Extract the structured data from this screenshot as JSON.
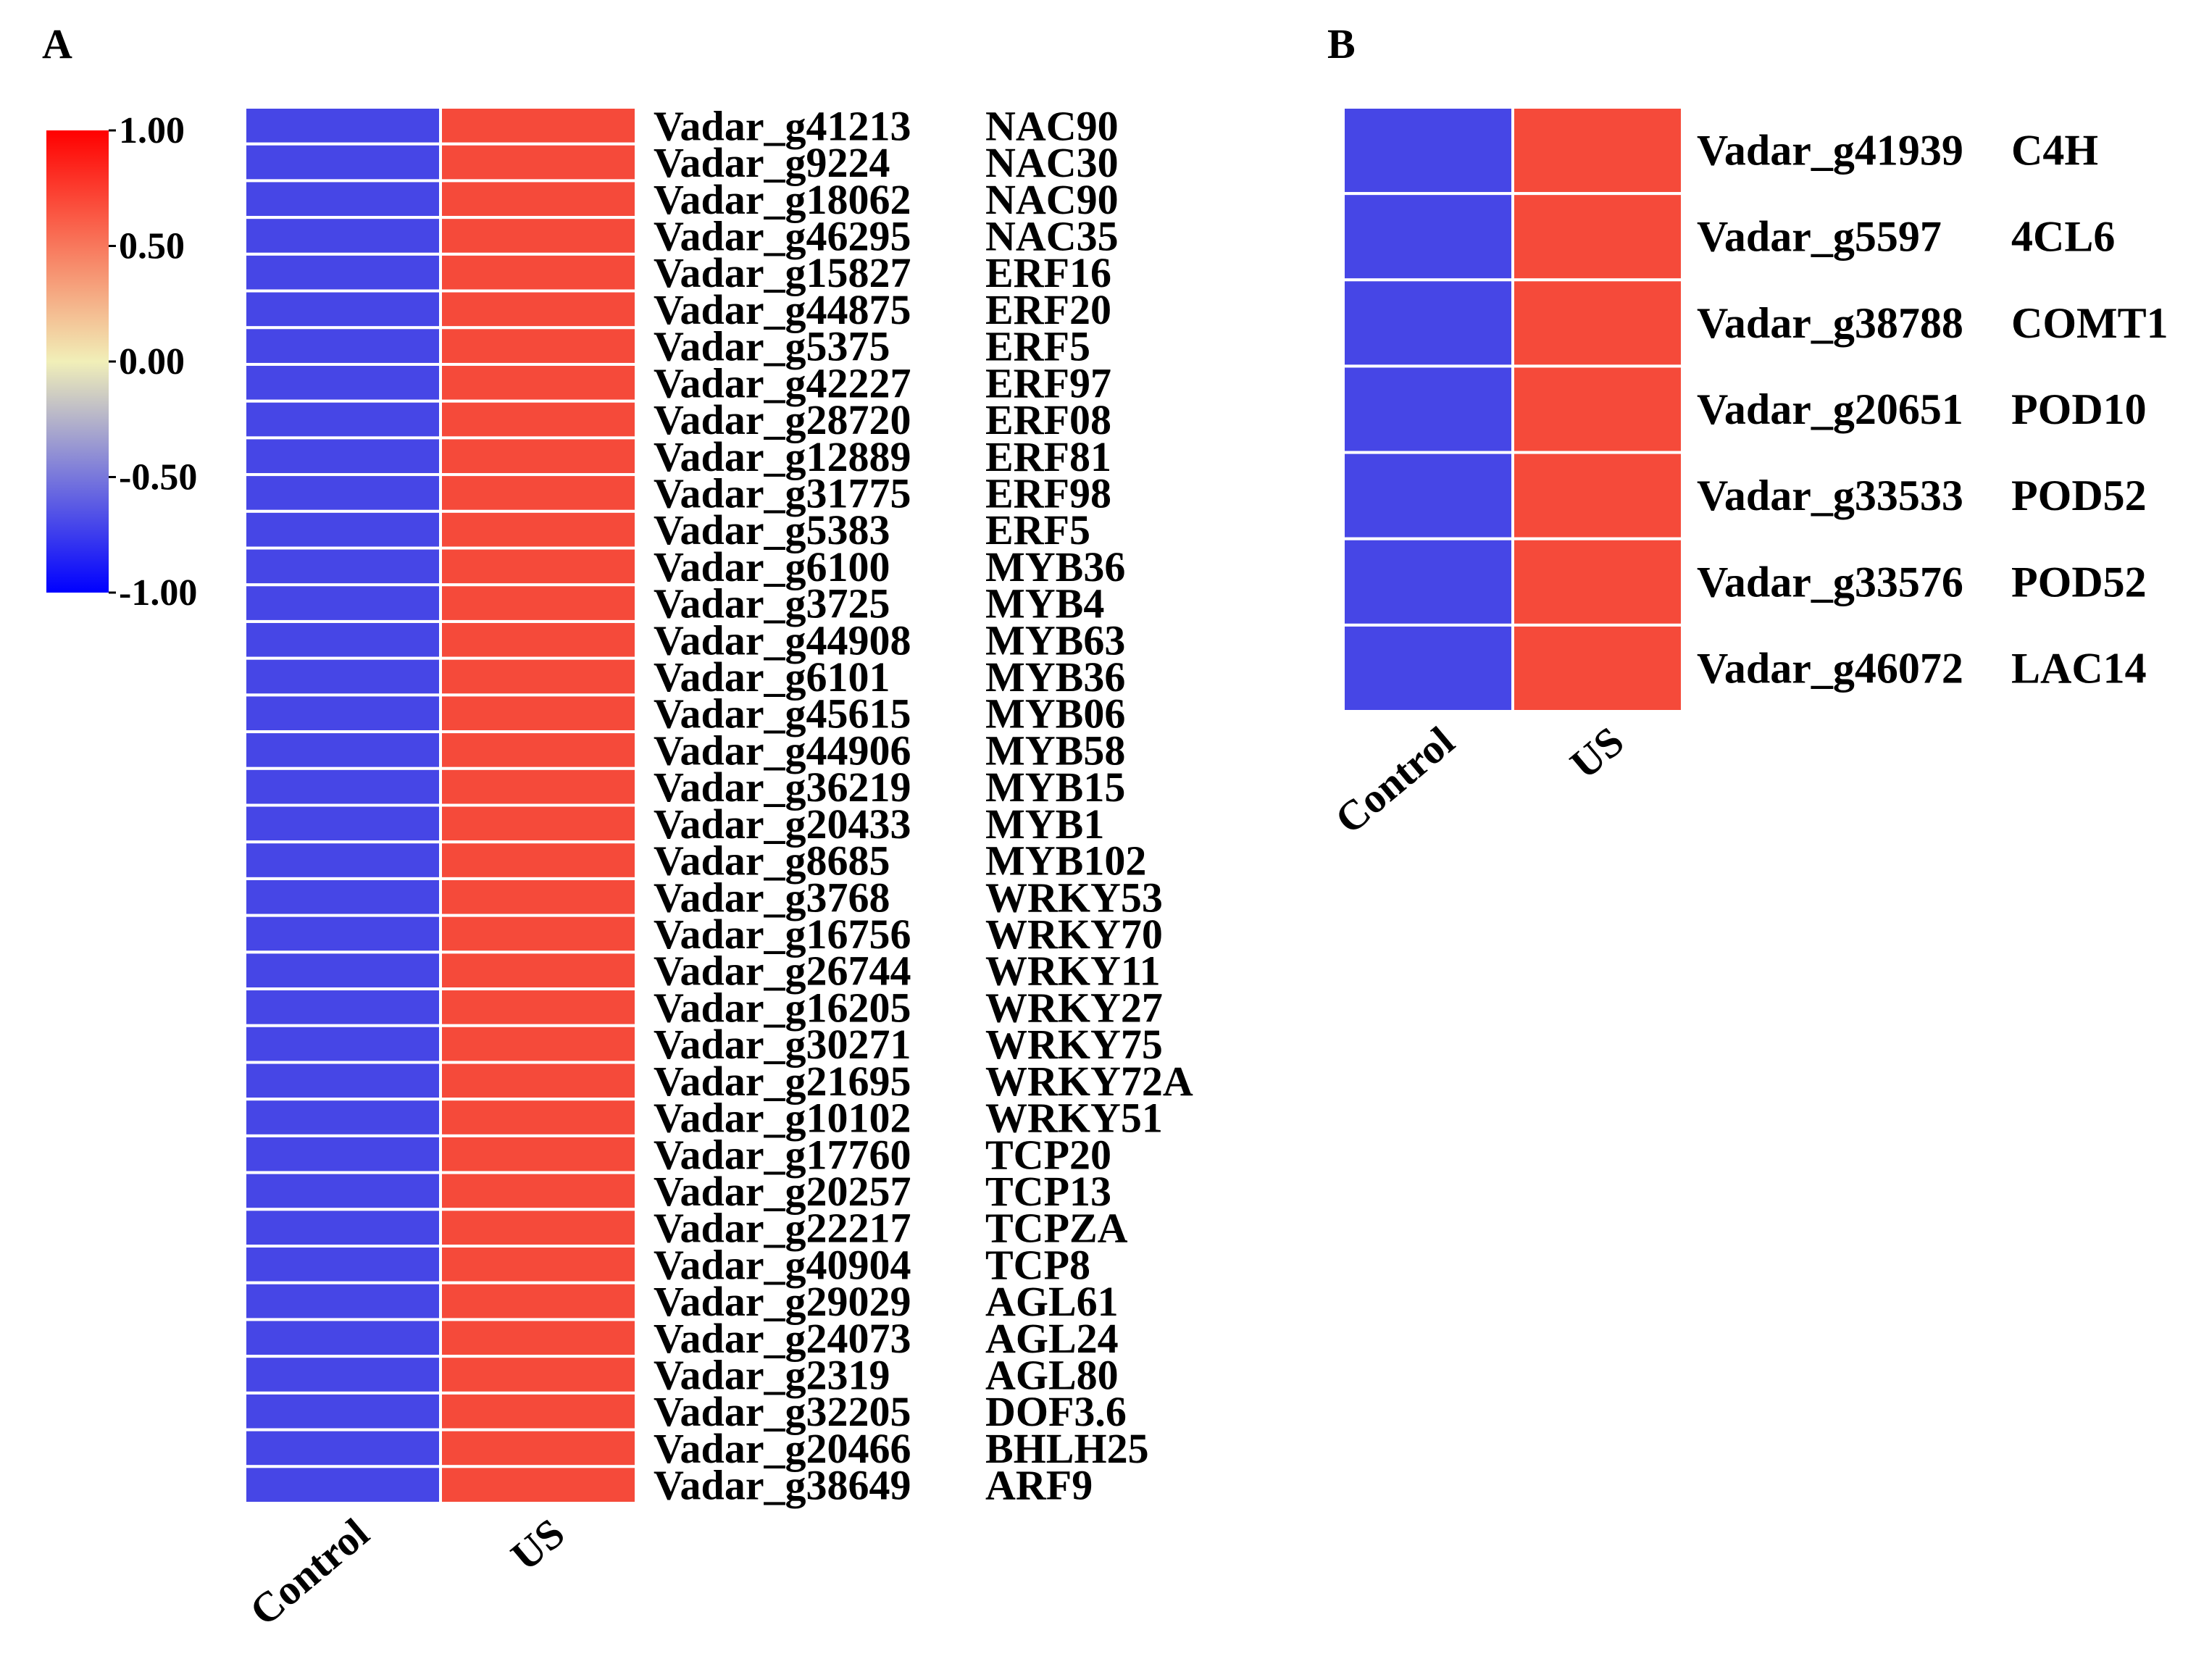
{
  "panel_labels": [
    "A",
    "B"
  ],
  "colors": {
    "low": "#0000ff",
    "mid": "#f1efb8",
    "high": "#ff0000",
    "cell_low": "#4646e6",
    "cell_high": "#f54a3a",
    "cell_border": "#ffffff"
  },
  "chart_data": [
    {
      "type": "heatmap",
      "panel": "A",
      "columns": [
        "Control",
        "US"
      ],
      "rows": [
        {
          "id": "Vadar_g41213",
          "gene": "NAC90"
        },
        {
          "id": "Vadar_g9224",
          "gene": "NAC30"
        },
        {
          "id": "Vadar_g18062",
          "gene": "NAC90"
        },
        {
          "id": "Vadar_g46295",
          "gene": "NAC35"
        },
        {
          "id": "Vadar_g15827",
          "gene": "ERF16"
        },
        {
          "id": "Vadar_g44875",
          "gene": "ERF20"
        },
        {
          "id": "Vadar_g5375",
          "gene": "ERF5"
        },
        {
          "id": "Vadar_g42227",
          "gene": "ERF97"
        },
        {
          "id": "Vadar_g28720",
          "gene": "ERF08"
        },
        {
          "id": "Vadar_g12889",
          "gene": "ERF81"
        },
        {
          "id": "Vadar_g31775",
          "gene": "ERF98"
        },
        {
          "id": "Vadar_g5383",
          "gene": "ERF5"
        },
        {
          "id": "Vadar_g6100",
          "gene": "MYB36"
        },
        {
          "id": "Vadar_g3725",
          "gene": "MYB4"
        },
        {
          "id": "Vadar_g44908",
          "gene": "MYB63"
        },
        {
          "id": "Vadar_g6101",
          "gene": "MYB36"
        },
        {
          "id": "Vadar_g45615",
          "gene": "MYB06"
        },
        {
          "id": "Vadar_g44906",
          "gene": "MYB58"
        },
        {
          "id": "Vadar_g36219",
          "gene": "MYB15"
        },
        {
          "id": "Vadar_g20433",
          "gene": "MYB1"
        },
        {
          "id": "Vadar_g8685",
          "gene": "MYB102"
        },
        {
          "id": "Vadar_g3768",
          "gene": "WRKY53"
        },
        {
          "id": "Vadar_g16756",
          "gene": "WRKY70"
        },
        {
          "id": "Vadar_g26744",
          "gene": "WRKY11"
        },
        {
          "id": "Vadar_g16205",
          "gene": "WRKY27"
        },
        {
          "id": "Vadar_g30271",
          "gene": "WRKY75"
        },
        {
          "id": "Vadar_g21695",
          "gene": "WRKY72A"
        },
        {
          "id": "Vadar_g10102",
          "gene": "WRKY51"
        },
        {
          "id": "Vadar_g17760",
          "gene": "TCP20"
        },
        {
          "id": "Vadar_g20257",
          "gene": "TCP13"
        },
        {
          "id": "Vadar_g22217",
          "gene": "TCPZA"
        },
        {
          "id": "Vadar_g40904",
          "gene": "TCP8"
        },
        {
          "id": "Vadar_g29029",
          "gene": "AGL61"
        },
        {
          "id": "Vadar_g24073",
          "gene": "AGL24"
        },
        {
          "id": "Vadar_g2319",
          "gene": "AGL80"
        },
        {
          "id": "Vadar_g32205",
          "gene": "DOF3.6"
        },
        {
          "id": "Vadar_g20466",
          "gene": "BHLH25"
        },
        {
          "id": "Vadar_g38649",
          "gene": "ARF9"
        }
      ],
      "values": [
        [
          -0.71,
          0.71
        ],
        [
          -0.71,
          0.71
        ],
        [
          -0.71,
          0.71
        ],
        [
          -0.71,
          0.71
        ],
        [
          -0.71,
          0.71
        ],
        [
          -0.71,
          0.71
        ],
        [
          -0.71,
          0.71
        ],
        [
          -0.71,
          0.71
        ],
        [
          -0.71,
          0.71
        ],
        [
          -0.71,
          0.71
        ],
        [
          -0.71,
          0.71
        ],
        [
          -0.71,
          0.71
        ],
        [
          -0.71,
          0.71
        ],
        [
          -0.71,
          0.71
        ],
        [
          -0.71,
          0.71
        ],
        [
          -0.71,
          0.71
        ],
        [
          -0.71,
          0.71
        ],
        [
          -0.71,
          0.71
        ],
        [
          -0.71,
          0.71
        ],
        [
          -0.71,
          0.71
        ],
        [
          -0.71,
          0.71
        ],
        [
          -0.71,
          0.71
        ],
        [
          -0.71,
          0.71
        ],
        [
          -0.71,
          0.71
        ],
        [
          -0.71,
          0.71
        ],
        [
          -0.71,
          0.71
        ],
        [
          -0.71,
          0.71
        ],
        [
          -0.71,
          0.71
        ],
        [
          -0.71,
          0.71
        ],
        [
          -0.71,
          0.71
        ],
        [
          -0.71,
          0.71
        ],
        [
          -0.71,
          0.71
        ],
        [
          -0.71,
          0.71
        ],
        [
          -0.71,
          0.71
        ],
        [
          -0.71,
          0.71
        ],
        [
          -0.71,
          0.71
        ],
        [
          -0.71,
          0.71
        ],
        [
          -0.71,
          0.71
        ]
      ],
      "colorbar": {
        "range": [
          -1.0,
          1.0
        ],
        "ticks": [
          "1.00",
          "0.50",
          "0.00",
          "-0.50",
          "-1.00"
        ]
      }
    },
    {
      "type": "heatmap",
      "panel": "B",
      "columns": [
        "Control",
        "US"
      ],
      "rows": [
        {
          "id": "Vadar_g41939",
          "gene": "C4H"
        },
        {
          "id": "Vadar_g5597",
          "gene": "4CL6"
        },
        {
          "id": "Vadar_g38788",
          "gene": "COMT1"
        },
        {
          "id": "Vadar_g20651",
          "gene": "POD10"
        },
        {
          "id": "Vadar_g33533",
          "gene": "POD52"
        },
        {
          "id": "Vadar_g33576",
          "gene": "POD52"
        },
        {
          "id": "Vadar_g46072",
          "gene": "LAC14"
        }
      ],
      "values": [
        [
          -0.71,
          0.71
        ],
        [
          -0.71,
          0.71
        ],
        [
          -0.71,
          0.71
        ],
        [
          -0.71,
          0.71
        ],
        [
          -0.71,
          0.71
        ],
        [
          -0.71,
          0.71
        ],
        [
          -0.71,
          0.71
        ]
      ]
    }
  ]
}
